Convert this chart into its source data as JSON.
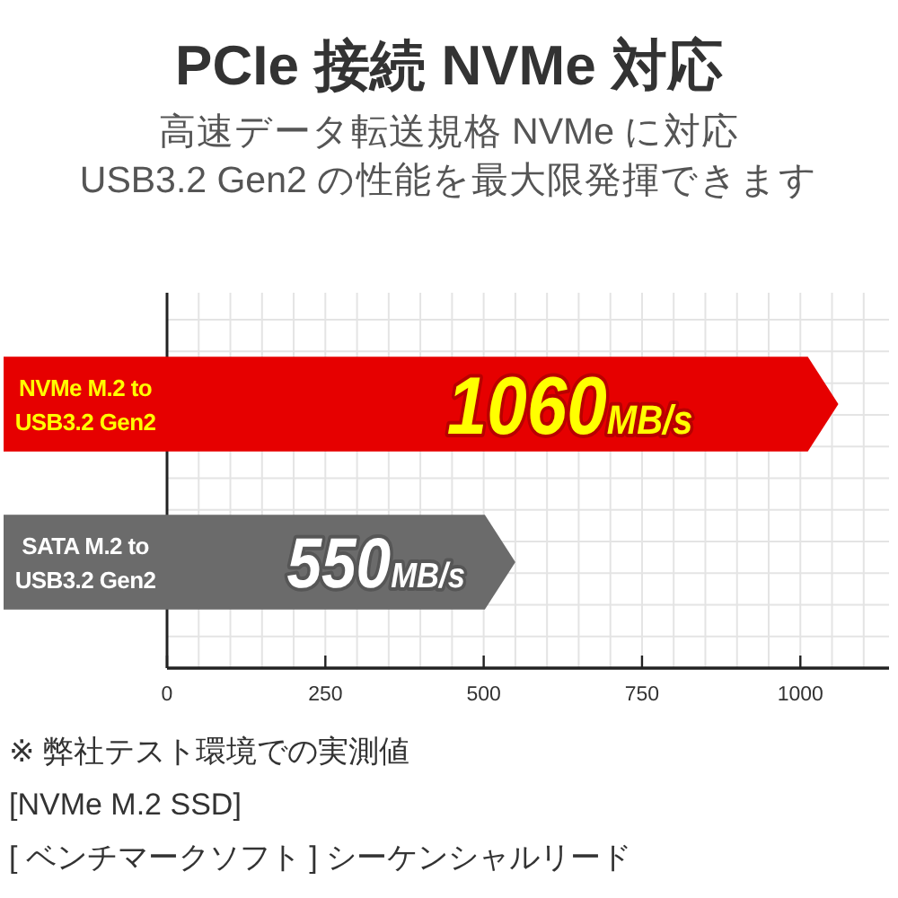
{
  "chart_data": {
    "type": "bar",
    "orientation": "horizontal",
    "title": "PCIe 接続 NVMe 対応",
    "subtitle": "高速データ転送規格 NVMe に対応\nUSB3.2 Gen2 の性能を最大限発揮できます",
    "categories": [
      "NVMe M.2 to USB3.2 Gen2",
      "SATA M.2 to USB3.2 Gen2"
    ],
    "values": [
      1060,
      550
    ],
    "colors": [
      "#e60000",
      "#6b6b6b"
    ],
    "value_labels": [
      "1060MB/s",
      "550MB/s"
    ],
    "xlim": [
      0,
      1140
    ],
    "xticks": [
      0,
      250,
      500,
      750,
      1000
    ],
    "grid": true,
    "annotations": [
      "※ 弊社テスト環境での実測値",
      "[NVMe M.2 SSD]",
      "[ ベンチマークソフト ] シーケンシャルリード"
    ]
  }
}
